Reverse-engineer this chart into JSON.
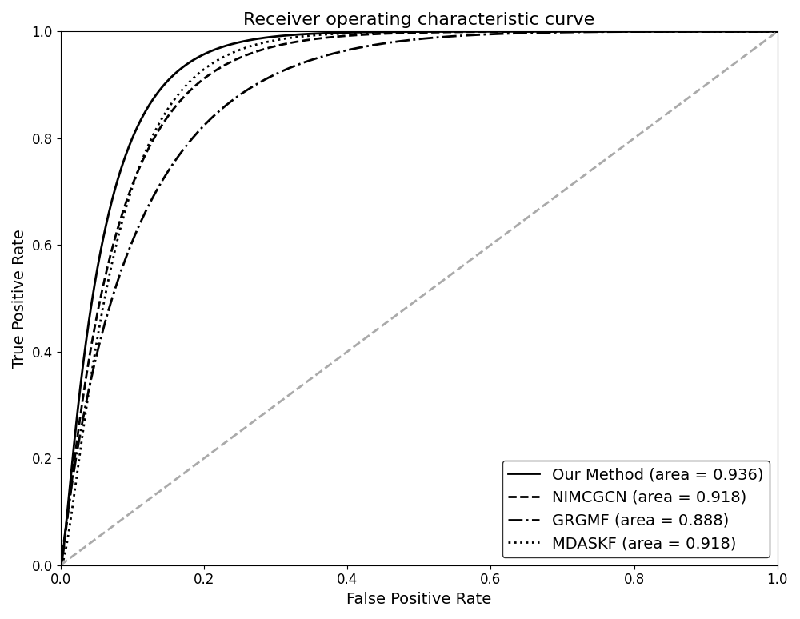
{
  "title": "Receiver operating characteristic curve",
  "xlabel": "False Positive Rate",
  "ylabel": "True Positive Rate",
  "xlim": [
    0.0,
    1.0
  ],
  "ylim": [
    0.0,
    1.0
  ],
  "methods": [
    {
      "label": "Our Method (area = 0.936)",
      "auc": 0.936,
      "alpha": 0.073,
      "linestyle": "solid",
      "linewidth": 2.0,
      "color": "#000000"
    },
    {
      "label": "NIMCGCN (area = 0.918)",
      "auc": 0.918,
      "alpha": 0.098,
      "linestyle": "dashed",
      "linewidth": 2.0,
      "color": "#000000"
    },
    {
      "label": "GRGMF (area = 0.888)",
      "auc": 0.888,
      "alpha": 0.145,
      "linestyle": "dashdot",
      "linewidth": 2.0,
      "color": "#000000"
    },
    {
      "label": "MDASKF (area = 0.918)",
      "auc": 0.918,
      "alpha": 0.088,
      "linestyle": "dotted",
      "linewidth": 2.0,
      "color": "#000000"
    }
  ],
  "diagonal_color": "#aaaaaa",
  "diagonal_linestyle": "dashed",
  "diagonal_linewidth": 2.0,
  "legend_loc": "lower right",
  "legend_fontsize": 14,
  "title_fontsize": 16,
  "label_fontsize": 14,
  "tick_fontsize": 12,
  "figsize": [
    10.0,
    7.74
  ],
  "dpi": 100
}
